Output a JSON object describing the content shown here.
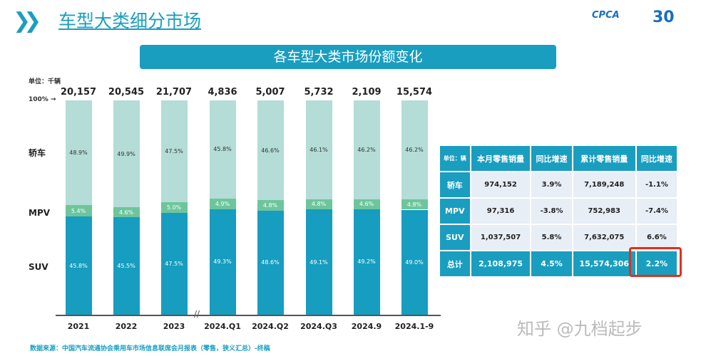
{
  "header": {
    "title": "车型大类细分市场",
    "logo": "CPCA 乘联分会",
    "logo_badge": "30"
  },
  "banner": "各车型大类市场份额变化",
  "unit": "单位：千辆",
  "hundred_label": "100% →",
  "chart_data": {
    "type": "bar",
    "stacked": true,
    "normalized": true,
    "categories": [
      "2021",
      "2022",
      "2023",
      "2024.Q1",
      "2024.Q2",
      "2024.Q3",
      "2024.9",
      "2024.1-9"
    ],
    "totals": [
      "20,157",
      "20,545",
      "21,707",
      "4,836",
      "5,007",
      "5,732",
      "2,109",
      "15,574"
    ],
    "series": [
      {
        "name": "SUV",
        "color": "#169dbf",
        "values": [
          45.8,
          45.5,
          47.5,
          49.3,
          48.6,
          49.1,
          49.2,
          49.0
        ]
      },
      {
        "name": "MPV",
        "color": "#6ec59b",
        "values": [
          5.4,
          4.6,
          5.0,
          4.9,
          4.8,
          4.8,
          4.6,
          4.8
        ]
      },
      {
        "name": "轿车",
        "color": "#b3ddd6",
        "values": [
          48.9,
          49.9,
          47.5,
          45.8,
          46.6,
          46.1,
          46.2,
          46.2
        ]
      }
    ],
    "axis_break_after": "2023"
  },
  "table": {
    "header": [
      "单位：辆",
      "本月零售销量",
      "同比增速",
      "累计零售销量",
      "同比增速"
    ],
    "rows": [
      [
        "轿车",
        "974,152",
        "3.9%",
        "7,189,248",
        "-1.1%"
      ],
      [
        "MPV",
        "97,316",
        "-3.8%",
        "752,983",
        "-7.4%"
      ],
      [
        "SUV",
        "1,037,507",
        "5.8%",
        "7,632,075",
        "6.6%"
      ],
      [
        "总计",
        "2,108,975",
        "4.5%",
        "15,574,306",
        "2.2%"
      ]
    ],
    "highlight_color": "#e0301e"
  },
  "source": "数据来源：中国汽车流通协会乘用车市场信息联席会月报表（零售，狭义汇总）-终稿",
  "watermark": "知乎 @九档起步"
}
